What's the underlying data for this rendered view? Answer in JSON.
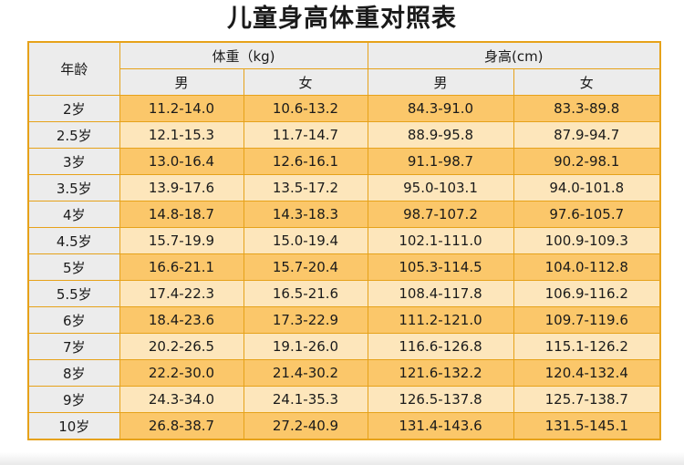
{
  "title": "儿童身高体重对照表",
  "headers": {
    "age": "年龄",
    "weight": "体重（kg)",
    "height": "身高(cm)",
    "male": "男",
    "female": "女"
  },
  "rows": [
    {
      "age": "2岁",
      "weight_male": "11.2-14.0",
      "weight_female": "10.6-13.2",
      "height_male": "84.3-91.0",
      "height_female": "83.3-89.8"
    },
    {
      "age": "2.5岁",
      "weight_male": "12.1-15.3",
      "weight_female": "11.7-14.7",
      "height_male": "88.9-95.8",
      "height_female": "87.9-94.7"
    },
    {
      "age": "3岁",
      "weight_male": "13.0-16.4",
      "weight_female": "12.6-16.1",
      "height_male": "91.1-98.7",
      "height_female": "90.2-98.1"
    },
    {
      "age": "3.5岁",
      "weight_male": "13.9-17.6",
      "weight_female": "13.5-17.2",
      "height_male": "95.0-103.1",
      "height_female": "94.0-101.8"
    },
    {
      "age": "4岁",
      "weight_male": "14.8-18.7",
      "weight_female": "14.3-18.3",
      "height_male": "98.7-107.2",
      "height_female": "97.6-105.7"
    },
    {
      "age": "4.5岁",
      "weight_male": "15.7-19.9",
      "weight_female": "15.0-19.4",
      "height_male": "102.1-111.0",
      "height_female": "100.9-109.3"
    },
    {
      "age": "5岁",
      "weight_male": "16.6-21.1",
      "weight_female": "15.7-20.4",
      "height_male": "105.3-114.5",
      "height_female": "104.0-112.8"
    },
    {
      "age": "5.5岁",
      "weight_male": "17.4-22.3",
      "weight_female": "16.5-21.6",
      "height_male": "108.4-117.8",
      "height_female": "106.9-116.2"
    },
    {
      "age": "6岁",
      "weight_male": "18.4-23.6",
      "weight_female": "17.3-22.9",
      "height_male": "111.2-121.0",
      "height_female": "109.7-119.6"
    },
    {
      "age": "7岁",
      "weight_male": "20.2-26.5",
      "weight_female": "19.1-26.0",
      "height_male": "116.6-126.8",
      "height_female": "115.1-126.2"
    },
    {
      "age": "8岁",
      "weight_male": "22.2-30.0",
      "weight_female": "21.4-30.2",
      "height_male": "121.6-132.2",
      "height_female": "120.4-132.4"
    },
    {
      "age": "9岁",
      "weight_male": "24.3-34.0",
      "weight_female": "24.1-35.3",
      "height_male": "126.5-137.8",
      "height_female": "125.7-138.7"
    },
    {
      "age": "10岁",
      "weight_male": "26.8-38.7",
      "weight_female": "27.2-40.9",
      "height_male": "131.4-143.6",
      "height_female": "131.5-145.1"
    }
  ],
  "colors": {
    "border": "#e6a21a",
    "row_dark": "#fbc76a",
    "row_light": "#fde6bb",
    "header_bg": "#ececec"
  }
}
